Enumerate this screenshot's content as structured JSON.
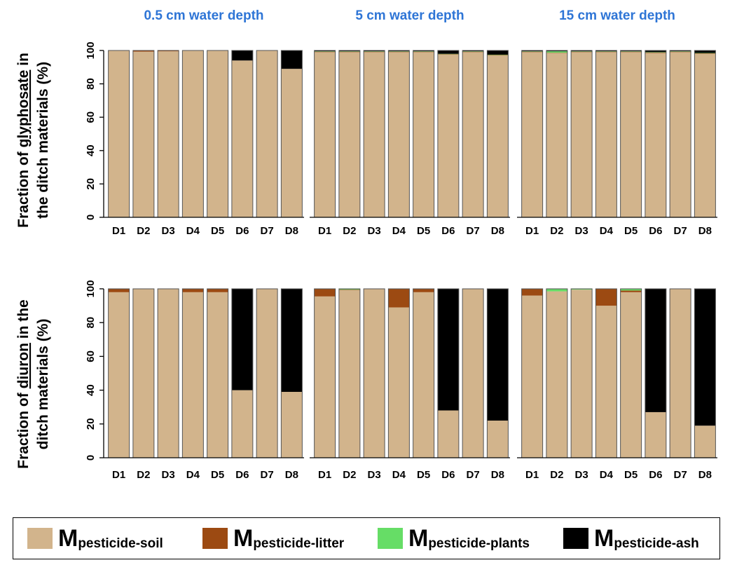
{
  "colors": {
    "soil": "#d2b48c",
    "litter": "#9c4a12",
    "plants": "#66dd66",
    "ash": "#000000"
  },
  "ylabels": {
    "glyphosate": [
      "Fraction of glyphosate in",
      "the ditch materials (%)"
    ],
    "glyphosate_underline": "glyphosate",
    "diuron": [
      "Fraction of diuron in the",
      "ditch materials (%)"
    ],
    "diuron_underline": "diuron"
  },
  "panel_titles": [
    "0.5 cm water depth",
    "5 cm water depth",
    "15 cm water depth"
  ],
  "legend": {
    "items": [
      {
        "key": "soil",
        "main": "M",
        "sub": "pesticide-soil"
      },
      {
        "key": "litter",
        "main": "M",
        "sub": "pesticide-litter"
      },
      {
        "key": "plants",
        "main": "M",
        "sub": "pesticide-plants"
      },
      {
        "key": "ash",
        "main": "M",
        "sub": "pesticide-ash"
      }
    ]
  },
  "chart_data": [
    {
      "type": "bar",
      "stacked": true,
      "pesticide": "glyphosate",
      "water_depth": "0.5 cm water depth",
      "categories": [
        "D1",
        "D2",
        "D3",
        "D4",
        "D5",
        "D6",
        "D7",
        "D8"
      ],
      "series": [
        {
          "name": "Mpesticide-soil",
          "values": [
            99.8,
            99.3,
            99.5,
            99.8,
            99.8,
            94,
            99.8,
            89
          ]
        },
        {
          "name": "Mpesticide-litter",
          "values": [
            0.2,
            0.5,
            0.4,
            0.2,
            0.2,
            0,
            0.2,
            0
          ]
        },
        {
          "name": "Mpesticide-plants",
          "values": [
            0,
            0.2,
            0.1,
            0,
            0,
            0,
            0,
            0
          ]
        },
        {
          "name": "Mpesticide-ash",
          "values": [
            0,
            0,
            0,
            0,
            0,
            6,
            0,
            11
          ]
        }
      ],
      "ylim": [
        0,
        100
      ],
      "yticks": [
        0,
        20,
        40,
        60,
        80,
        100
      ]
    },
    {
      "type": "bar",
      "stacked": true,
      "pesticide": "glyphosate",
      "water_depth": "5 cm water depth",
      "categories": [
        "D1",
        "D2",
        "D3",
        "D4",
        "D5",
        "D6",
        "D7",
        "D8"
      ],
      "series": [
        {
          "name": "Mpesticide-soil",
          "values": [
            99,
            99,
            99,
            99,
            99,
            97.5,
            99,
            97
          ]
        },
        {
          "name": "Mpesticide-litter",
          "values": [
            0.3,
            0.3,
            0.3,
            0.3,
            0.3,
            0.3,
            0.3,
            0.3
          ]
        },
        {
          "name": "Mpesticide-plants",
          "values": [
            0.2,
            0.2,
            0.2,
            0.2,
            0.2,
            0.2,
            0.2,
            0.2
          ]
        },
        {
          "name": "Mpesticide-ash",
          "values": [
            0.5,
            0.5,
            0.5,
            0.5,
            0.5,
            2,
            0.5,
            2.5
          ]
        }
      ],
      "ylim": [
        0,
        100
      ],
      "yticks": [
        0,
        20,
        40,
        60,
        80,
        100
      ]
    },
    {
      "type": "bar",
      "stacked": true,
      "pesticide": "glyphosate",
      "water_depth": "15 cm water depth",
      "categories": [
        "D1",
        "D2",
        "D3",
        "D4",
        "D5",
        "D6",
        "D7",
        "D8"
      ],
      "series": [
        {
          "name": "Mpesticide-soil",
          "values": [
            99,
            98.5,
            99,
            99,
            99,
            98.5,
            99,
            98
          ]
        },
        {
          "name": "Mpesticide-litter",
          "values": [
            0.3,
            0.2,
            0.3,
            0.3,
            0.3,
            0.3,
            0.3,
            0.3
          ]
        },
        {
          "name": "Mpesticide-plants",
          "values": [
            0.2,
            0.8,
            0.2,
            0.2,
            0.2,
            0.2,
            0.2,
            0.2
          ]
        },
        {
          "name": "Mpesticide-ash",
          "values": [
            0.5,
            0.5,
            0.5,
            0.5,
            0.5,
            1,
            0.5,
            1.5
          ]
        }
      ],
      "ylim": [
        0,
        100
      ],
      "yticks": [
        0,
        20,
        40,
        60,
        80,
        100
      ]
    },
    {
      "type": "bar",
      "stacked": true,
      "pesticide": "diuron",
      "water_depth": "0.5 cm water depth",
      "categories": [
        "D1",
        "D2",
        "D3",
        "D4",
        "D5",
        "D6",
        "D7",
        "D8"
      ],
      "series": [
        {
          "name": "Mpesticide-soil",
          "values": [
            98,
            99.8,
            99.8,
            98,
            98,
            40,
            99.8,
            39
          ]
        },
        {
          "name": "Mpesticide-litter",
          "values": [
            2,
            0.2,
            0.2,
            2,
            2,
            0,
            0.2,
            0
          ]
        },
        {
          "name": "Mpesticide-plants",
          "values": [
            0,
            0,
            0,
            0,
            0,
            0,
            0,
            0
          ]
        },
        {
          "name": "Mpesticide-ash",
          "values": [
            0,
            0,
            0,
            0,
            0,
            60,
            0,
            61
          ]
        }
      ],
      "ylim": [
        0,
        100
      ],
      "yticks": [
        0,
        20,
        40,
        60,
        80,
        100
      ]
    },
    {
      "type": "bar",
      "stacked": true,
      "pesticide": "diuron",
      "water_depth": "5 cm water depth",
      "categories": [
        "D1",
        "D2",
        "D3",
        "D4",
        "D5",
        "D6",
        "D7",
        "D8"
      ],
      "series": [
        {
          "name": "Mpesticide-soil",
          "values": [
            95.5,
            99.2,
            99.8,
            89,
            98,
            28,
            99.8,
            22
          ]
        },
        {
          "name": "Mpesticide-litter",
          "values": [
            4.5,
            0.3,
            0.2,
            11,
            2,
            0,
            0.2,
            0
          ]
        },
        {
          "name": "Mpesticide-plants",
          "values": [
            0,
            0.5,
            0,
            0,
            0,
            0,
            0,
            0
          ]
        },
        {
          "name": "Mpesticide-ash",
          "values": [
            0,
            0,
            0,
            0,
            0,
            72,
            0,
            78
          ]
        }
      ],
      "ylim": [
        0,
        100
      ],
      "yticks": [
        0,
        20,
        40,
        60,
        80,
        100
      ]
    },
    {
      "type": "bar",
      "stacked": true,
      "pesticide": "diuron",
      "water_depth": "15 cm water depth",
      "categories": [
        "D1",
        "D2",
        "D3",
        "D4",
        "D5",
        "D6",
        "D7",
        "D8"
      ],
      "series": [
        {
          "name": "Mpesticide-soil",
          "values": [
            96,
            98.5,
            99.5,
            90,
            98,
            27,
            99.8,
            19
          ]
        },
        {
          "name": "Mpesticide-litter",
          "values": [
            4,
            0,
            0,
            10,
            1,
            0,
            0.2,
            0
          ]
        },
        {
          "name": "Mpesticide-plants",
          "values": [
            0,
            1.5,
            0.5,
            0,
            1,
            0,
            0,
            0
          ]
        },
        {
          "name": "Mpesticide-ash",
          "values": [
            0,
            0,
            0,
            0,
            0,
            73,
            0,
            81
          ]
        }
      ],
      "ylim": [
        0,
        100
      ],
      "yticks": [
        0,
        20,
        40,
        60,
        80,
        100
      ]
    }
  ]
}
